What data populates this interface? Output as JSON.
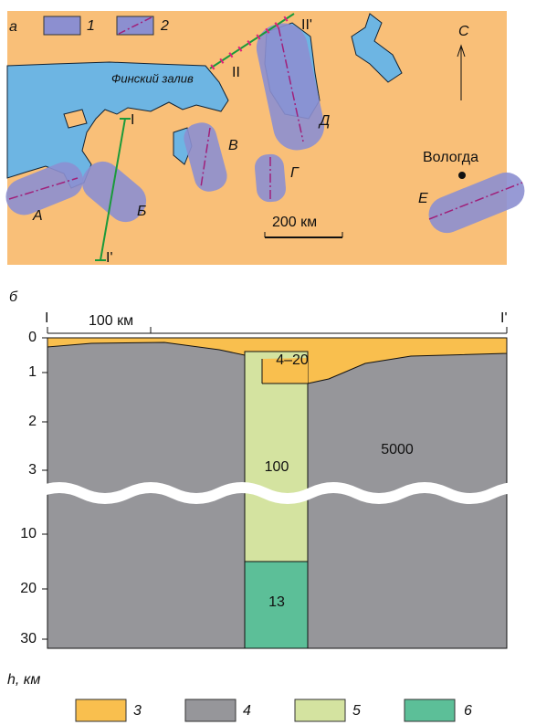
{
  "map": {
    "panel_label": "а",
    "legend": [
      {
        "label": "1"
      },
      {
        "label": "2"
      }
    ],
    "gulf": "Финский залив",
    "profiles": [
      {
        "start": "I",
        "end": "I'"
      },
      {
        "start": "II",
        "end": "II'"
      }
    ],
    "north": "С",
    "city": "Вологда",
    "zones": [
      "А",
      "Б",
      "В",
      "Г",
      "Д",
      "Е"
    ],
    "scale": "200 км"
  },
  "section": {
    "panel_label": "б",
    "start": "I",
    "end": "I'",
    "scale": "100 км",
    "depth_labels": [
      "0",
      "1",
      "2",
      "3",
      "10",
      "20",
      "30"
    ],
    "depth_axis": "h, км",
    "values": [
      "4–20",
      "100",
      "5000",
      "13"
    ],
    "legend": [
      {
        "label": "3"
      },
      {
        "label": "4"
      },
      {
        "label": "5"
      },
      {
        "label": "6"
      }
    ]
  }
}
